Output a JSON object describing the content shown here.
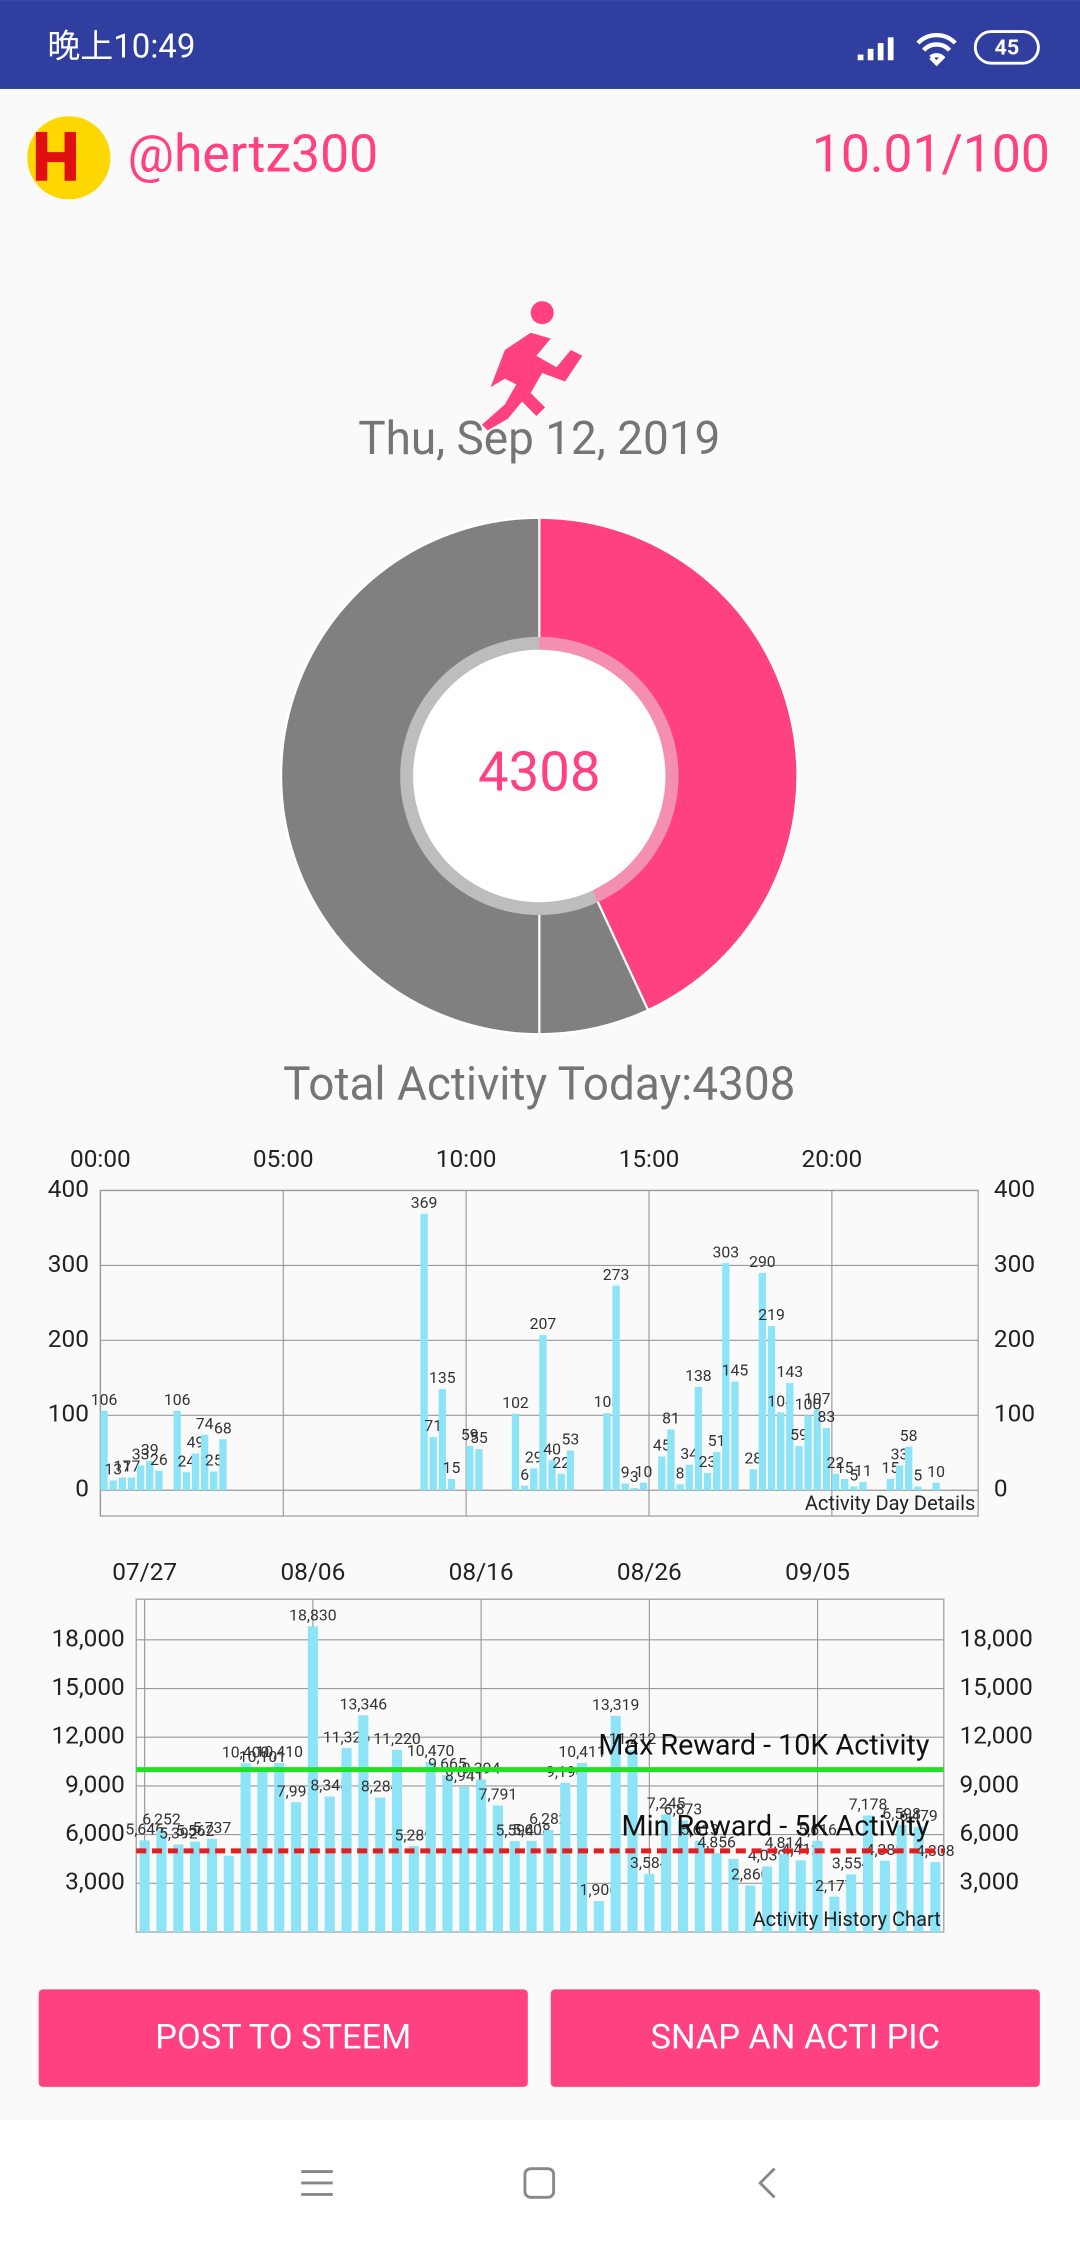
{
  "status_bar": {
    "time": "晚上10:49",
    "battery": "45"
  },
  "header": {
    "username": "@hertz300",
    "score": "10.01/100"
  },
  "date": "Thu, Sep 12, 2019",
  "total_label": "Total Activity Today:4308",
  "chart_data": [
    {
      "type": "pie",
      "center_label": "4308",
      "values": [
        4308,
        692,
        5000
      ],
      "colors": [
        "#ff4081",
        "#808080",
        "#808080"
      ]
    },
    {
      "type": "bar",
      "annotation": "Activity Day Details",
      "color": "#8de4f7",
      "grid": true,
      "x": [
        0,
        0.25,
        0.5,
        0.75,
        1,
        1.25,
        1.5,
        2,
        2.25,
        2.5,
        2.75,
        3,
        3.25,
        8.75,
        9,
        9.25,
        9.5,
        10,
        10.25,
        11.25,
        11.5,
        11.75,
        12,
        12.25,
        12.5,
        12.75,
        13.75,
        14,
        14.25,
        14.5,
        14.75,
        15.25,
        15.5,
        15.75,
        16,
        16.25,
        16.5,
        16.75,
        17,
        17.25,
        17.75,
        18,
        18.25,
        18.5,
        18.75,
        19,
        19.25,
        19.5,
        19.75,
        20,
        20.25,
        20.5,
        20.75,
        21.5,
        21.75,
        22,
        22.25,
        22.75
      ],
      "values": [
        106,
        13,
        17,
        17,
        33,
        39,
        26,
        106,
        24,
        49,
        74,
        25,
        68,
        369,
        71,
        135,
        15,
        59,
        55,
        102,
        6,
        29,
        207,
        40,
        22,
        53,
        103,
        273,
        9,
        3,
        10,
        45,
        81,
        8,
        34,
        138,
        23,
        51,
        303,
        145,
        28,
        290,
        219,
        104,
        143,
        59,
        100,
        107,
        83,
        22,
        15,
        5,
        11,
        15,
        33,
        58,
        5,
        10
      ],
      "xlim": [
        0,
        24
      ],
      "xticks": [
        {
          "value": 0,
          "label": "00:00"
        },
        {
          "value": 5,
          "label": "05:00"
        },
        {
          "value": 10,
          "label": "10:00"
        },
        {
          "value": 15,
          "label": "15:00"
        },
        {
          "value": 20,
          "label": "20:00"
        }
      ],
      "ylim": [
        0,
        400
      ],
      "yticks": [
        0,
        100,
        200,
        300,
        400
      ]
    },
    {
      "type": "bar",
      "annotation": "Activity History Chart",
      "color": "#8de4f7",
      "grid": true,
      "categories": [
        "07/27",
        null,
        null,
        null,
        null,
        null,
        null,
        null,
        null,
        null,
        "08/06",
        null,
        null,
        null,
        null,
        null,
        null,
        null,
        null,
        null,
        "08/16",
        null,
        null,
        null,
        null,
        null,
        null,
        null,
        null,
        null,
        "08/26",
        null,
        null,
        null,
        null,
        null,
        null,
        null,
        null,
        null,
        "09/05",
        null,
        null,
        null,
        null,
        null,
        null,
        null
      ],
      "values": [
        5646,
        6252,
        5392,
        5562,
        5737,
        4700,
        10400,
        10101,
        10410,
        7995,
        18830,
        8348,
        11326,
        13346,
        8284,
        11220,
        5289,
        10470,
        9665,
        8941,
        9394,
        7791,
        5594,
        5608,
        6282,
        9190,
        10411,
        1906,
        13319,
        11212,
        3584,
        7245,
        6873,
        5613,
        4856,
        4500,
        2860,
        4039,
        4814,
        4412,
        5616,
        2177,
        3554,
        7178,
        4388,
        6598,
        6479,
        4308
      ],
      "value_labels": [
        "5,646",
        "6,252",
        "5,392",
        "5,562",
        "5,737",
        null,
        "10,400",
        "10,101",
        "10,410",
        "7,995",
        "18,830",
        "8,348",
        "11,326",
        "13,346",
        "8,284",
        "11,220",
        "5,289",
        "10,470",
        "9,665",
        "8,941",
        "9,394",
        "7,791",
        "5,594",
        "5,608",
        "6,282",
        "9,190",
        "10,411",
        "1,906",
        "13,319",
        "11,212",
        "3,584",
        "7,245",
        "6,873",
        "5,613",
        "4,856",
        null,
        "2,860",
        "4,039",
        "4,814",
        "4,412",
        "5,616",
        "2,177",
        "3,554",
        "7,178",
        "4,388",
        "6,598",
        "6,479",
        "4,308"
      ],
      "ylim": [
        0,
        20500
      ],
      "yticks": [
        {
          "value": 3000,
          "label": "3,000"
        },
        {
          "value": 6000,
          "label": "6,000"
        },
        {
          "value": 9000,
          "label": "9,000"
        },
        {
          "value": 12000,
          "label": "12,000"
        },
        {
          "value": 15000,
          "label": "15,000"
        },
        {
          "value": 18000,
          "label": "18,000"
        }
      ],
      "reference_lines": [
        {
          "value": 10000,
          "label": "Max Reward - 10K Activity",
          "color": "#22e022",
          "style": "solid"
        },
        {
          "value": 5000,
          "label": "Min Reward - 5K Activity",
          "color": "#e02020",
          "style": "dashed"
        }
      ]
    }
  ],
  "buttons": [
    "POST TO STEEM",
    "SNAP AN ACTI PIC"
  ]
}
